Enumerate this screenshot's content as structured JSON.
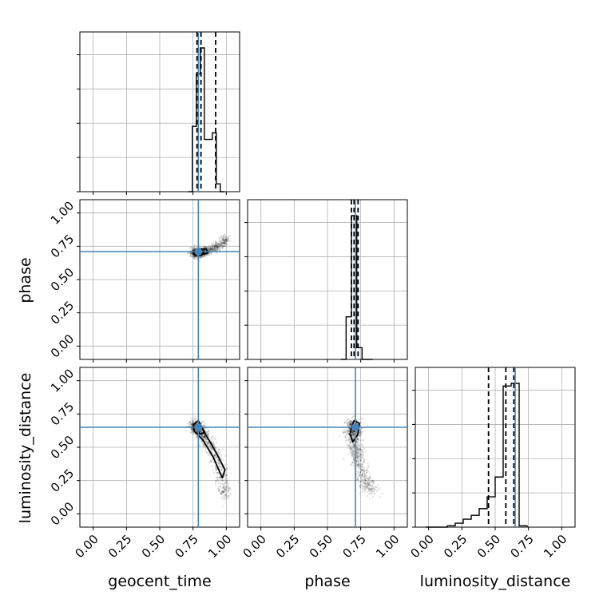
{
  "chart_data": {
    "type": "corner",
    "parameters": [
      "geocent_time",
      "phase",
      "luminosity_distance"
    ],
    "axis_range": [
      -0.1,
      1.1
    ],
    "ticks": [
      0.0,
      0.25,
      0.5,
      0.75,
      1.0
    ],
    "tick_labels": [
      "0.00",
      "0.25",
      "0.50",
      "0.75",
      "1.00"
    ],
    "grid": true,
    "colors": {
      "truth": "#4682b4",
      "hist": "#000000",
      "points": "#000000",
      "grid": "#b0b0b0"
    },
    "truths": {
      "geocent_time": 0.79,
      "phase": 0.71,
      "luminosity_distance": 0.65
    },
    "histograms": {
      "geocent_time": {
        "edges": [
          0.715,
          0.745,
          0.775,
          0.805,
          0.835,
          0.865,
          0.895,
          0.925,
          0.955,
          0.985
        ],
        "heights": [
          0.0,
          0.5,
          0.9,
          1.1,
          0.4,
          0.4,
          0.45,
          0.06,
          0.0
        ],
        "quantiles": [
          0.78,
          0.81,
          0.92
        ]
      },
      "phase": {
        "edges": [
          0.6,
          0.64,
          0.68,
          0.72,
          0.76,
          0.8,
          0.84
        ],
        "heights": [
          0.0,
          0.29,
          0.98,
          0.08,
          0.0,
          0.0
        ],
        "quantiles": [
          0.68,
          0.7,
          0.73
        ]
      },
      "luminosity_distance": {
        "edges": [
          -0.02,
          0.02,
          0.08,
          0.14,
          0.2,
          0.26,
          0.32,
          0.38,
          0.44,
          0.5,
          0.56,
          0.62,
          0.68,
          0.74
        ],
        "heights": [
          0.0,
          0.0,
          0.0,
          0.01,
          0.03,
          0.06,
          0.09,
          0.14,
          0.23,
          0.38,
          1.07,
          1.09,
          0.01
        ],
        "quantiles": [
          0.45,
          0.58,
          0.64
        ]
      }
    },
    "scatter": {
      "phase_vs_geocent_time": {
        "ridge": [
          [
            0.76,
            0.7
          ],
          [
            0.8,
            0.7
          ],
          [
            0.84,
            0.71
          ],
          [
            0.9,
            0.73
          ],
          [
            0.96,
            0.76
          ],
          [
            1.0,
            0.81
          ]
        ],
        "spread": 0.018,
        "contours": [
          [
            [
              0.76,
              0.69
            ],
            [
              0.8,
              0.68
            ],
            [
              0.86,
              0.7
            ],
            [
              0.85,
              0.73
            ],
            [
              0.78,
              0.73
            ],
            [
              0.75,
              0.71
            ]
          ],
          [
            [
              0.78,
              0.7
            ],
            [
              0.82,
              0.695
            ],
            [
              0.84,
              0.71
            ],
            [
              0.8,
              0.72
            ]
          ]
        ]
      },
      "luminosity_distance_vs_geocent_time": {
        "ridge": [
          [
            0.76,
            0.66
          ],
          [
            0.8,
            0.63
          ],
          [
            0.85,
            0.55
          ],
          [
            0.9,
            0.47
          ],
          [
            0.95,
            0.35
          ],
          [
            0.98,
            0.22
          ],
          [
            1.0,
            0.13
          ]
        ],
        "spread": 0.025,
        "contours": [
          [
            [
              0.75,
              0.67
            ],
            [
              0.79,
              0.7
            ],
            [
              0.83,
              0.62
            ],
            [
              0.89,
              0.52
            ],
            [
              0.94,
              0.43
            ],
            [
              0.99,
              0.33
            ],
            [
              0.97,
              0.27
            ],
            [
              0.9,
              0.43
            ],
            [
              0.82,
              0.56
            ],
            [
              0.76,
              0.62
            ]
          ],
          [
            [
              0.77,
              0.66
            ],
            [
              0.8,
              0.68
            ],
            [
              0.84,
              0.61
            ],
            [
              0.8,
              0.6
            ]
          ]
        ]
      },
      "luminosity_distance_vs_phase": {
        "ridge": [
          [
            0.7,
            0.67
          ],
          [
            0.69,
            0.6
          ],
          [
            0.71,
            0.5
          ],
          [
            0.73,
            0.4
          ],
          [
            0.76,
            0.3
          ],
          [
            0.8,
            0.22
          ],
          [
            0.84,
            0.17
          ]
        ],
        "spread": 0.03,
        "contours": [
          [
            [
              0.68,
              0.65
            ],
            [
              0.7,
              0.7
            ],
            [
              0.74,
              0.68
            ],
            [
              0.73,
              0.6
            ],
            [
              0.69,
              0.54
            ],
            [
              0.67,
              0.6
            ]
          ],
          [
            [
              0.69,
              0.65
            ],
            [
              0.71,
              0.68
            ],
            [
              0.72,
              0.64
            ],
            [
              0.7,
              0.62
            ]
          ]
        ]
      }
    }
  }
}
